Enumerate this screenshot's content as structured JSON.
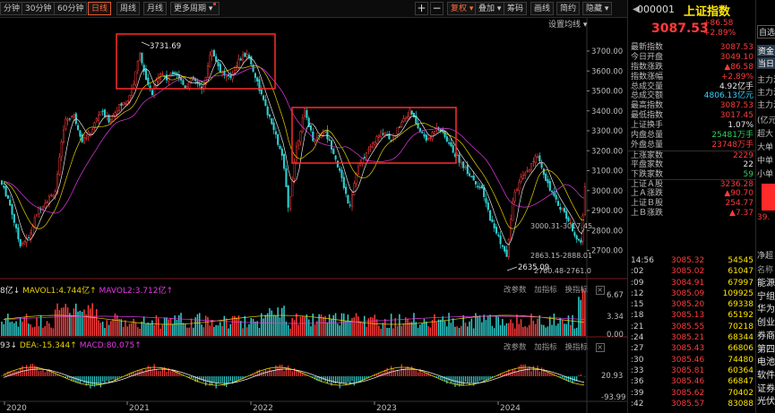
{
  "toolbar": {
    "tabs": [
      "分钟",
      "30分钟",
      "60分钟",
      "日线",
      "周线",
      "月线",
      "更多周期 ▾"
    ],
    "active_tab": "日线",
    "right_buttons": [
      "复权 ▾",
      "叠加 ▾",
      "筹码",
      "画线",
      "简约",
      "隐藏 ▾"
    ],
    "plus_icon": "+",
    "minus_icon": "−"
  },
  "main_chart": {
    "settings_label": "设置均线 ▾",
    "y_ticks": [
      "3700.00",
      "3600.00",
      "3500.00",
      "3400.00",
      "3300.00",
      "3200.00",
      "3100.00",
      "3000.00",
      "2900.00",
      "2800.00",
      "2700.00"
    ],
    "annotations": {
      "high_label": "3731.69",
      "low_label": "2635.09",
      "range_label_1": "3000.31-3017.45",
      "range_label_2": "2863.15-2888.01",
      "range_label_3": "2760.48-2761.0"
    },
    "x_ticks": [
      "2020",
      "2021",
      "2022",
      "2023",
      "2024"
    ]
  },
  "volume_panel": {
    "label_prefix": "8亿↓",
    "ma1": "MAVOL1:4.744亿↑",
    "ma2": "MAVOL2:3.712亿↑",
    "buttons": [
      "改参数",
      "加指标",
      "换指标"
    ],
    "close": "×",
    "y_ticks": [
      "6.67",
      "3.34",
      "0.00"
    ]
  },
  "macd_panel": {
    "label_prefix": "93↓",
    "dea": "DEA:-15.344↑",
    "macd": "MACD:80.075↑",
    "buttons": [
      "改参数",
      "加指标",
      "换指标"
    ],
    "close": "×",
    "y_ticks": [
      "20.93",
      "-93.99"
    ]
  },
  "quote": {
    "code": "000001",
    "name": "上证指数",
    "price": "3087.53",
    "change": "+86.58",
    "change_pct": "+2.89%"
  },
  "stats": [
    {
      "k": "最新指数",
      "v": "3087.53",
      "c": "#ff3b3b"
    },
    {
      "k": "今日开盘",
      "v": "3049.10",
      "c": "#ff3b3b"
    },
    {
      "k": "指数涨跌",
      "v": "▲86.58",
      "c": "#ff3b3b"
    },
    {
      "k": "指数涨幅",
      "v": "+2.89%",
      "c": "#ff3b3b"
    },
    {
      "k": "总成交量",
      "v": "4.92亿手",
      "c": "#e8e8e8"
    },
    {
      "k": "总成交额",
      "v": "4806.13亿元",
      "c": "#3ad0ff"
    },
    {
      "k": "最高指数",
      "v": "3087.53",
      "c": "#ff3b3b"
    },
    {
      "k": "最低指数",
      "v": "3017.45",
      "c": "#ff3b3b"
    },
    {
      "k": "上证换手",
      "v": "1.07%",
      "c": "#e8e8e8"
    },
    {
      "k": "内盘总量",
      "v": "25481万手",
      "c": "#2fd15a"
    },
    {
      "k": "外盘总量",
      "v": "23748万手",
      "c": "#ff3b3b"
    },
    {
      "k": "上涨家数",
      "v": "2229",
      "c": "#ff3b3b"
    },
    {
      "k": "平盘家数",
      "v": "22",
      "c": "#e8e8e8"
    },
    {
      "k": "下跌家数",
      "v": "59",
      "c": "#2fd15a"
    },
    {
      "k": "上证Ａ股",
      "v": "3236.28",
      "c": "#ff3b3b"
    },
    {
      "k": "上Ａ涨跌",
      "v": "▲90.70",
      "c": "#ff3b3b"
    },
    {
      "k": "上证Ｂ股",
      "v": "254.77",
      "c": "#ff3b3b"
    },
    {
      "k": "上Ｂ涨跌",
      "v": "▲7.37",
      "c": "#ff3b3b"
    }
  ],
  "trades": [
    {
      "t": "14:56",
      "p": "3085.32",
      "q": "54545"
    },
    {
      "t": ":02",
      "p": "3085.02",
      "q": "61047"
    },
    {
      "t": ":09",
      "p": "3084.91",
      "q": "67997"
    },
    {
      "t": ":12",
      "p": "3085.09",
      "q": "109925"
    },
    {
      "t": ":15",
      "p": "3085.20",
      "q": "69338"
    },
    {
      "t": ":18",
      "p": "3085.13",
      "q": "65192"
    },
    {
      "t": ":21",
      "p": "3085.55",
      "q": "70218"
    },
    {
      "t": ":24",
      "p": "3085.21",
      "q": "68344"
    },
    {
      "t": ":27",
      "p": "3085.43",
      "q": "66806"
    },
    {
      "t": ":30",
      "p": "3085.46",
      "q": "74480"
    },
    {
      "t": ":33",
      "p": "3085.81",
      "q": "60364"
    },
    {
      "t": ":36",
      "p": "3085.46",
      "q": "66847"
    },
    {
      "t": ":39",
      "p": "3085.62",
      "q": "70402"
    },
    {
      "t": ":42",
      "p": "3085.57",
      "q": "83088"
    }
  ],
  "side_column": {
    "top_btn": "自选",
    "fund_btn_1": "资金",
    "fund_btn_2": "当日",
    "items": [
      "主力流",
      "主力流",
      "主力流",
      "主力流",
      "(亿元)",
      "超大",
      "大单",
      "中单",
      "小单"
    ],
    "fund_value": "39.",
    "net_label": "净超",
    "rank_label": "名称",
    "sectors": [
      "能源",
      "宁组",
      "华为",
      "创业",
      "券商",
      "第四",
      "电池",
      "软件",
      "证券",
      "光伏"
    ]
  },
  "colors": {
    "up": "#ff3b3b",
    "down": "#2fd0d0",
    "highlight_box": "#ff2a2a",
    "ma_yellow": "#e8d000",
    "ma_magenta": "#e23be2"
  }
}
